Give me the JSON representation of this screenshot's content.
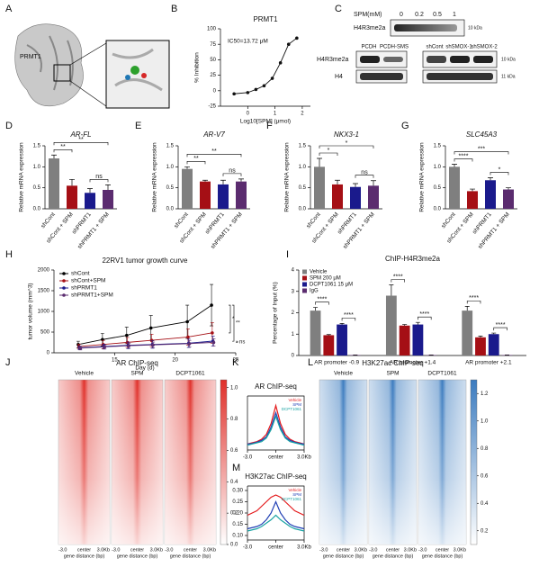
{
  "figure": {
    "A": {
      "panel": "A",
      "label": "PRMT1"
    },
    "C": {
      "panel": "C",
      "dose_label": "SPM(mM)",
      "doses": [
        "0",
        "0.2",
        "0.5",
        "1"
      ],
      "band1": "H4R3me2a",
      "kda1": "10 kDa",
      "left_lanes": [
        "PCDH",
        "PCDH-SMS"
      ],
      "right_lanes": [
        "shCont",
        "shSMOX-1",
        "shSMOX-2"
      ],
      "band2": "H4R3me2a",
      "band3": "H4",
      "kda2": "10 kDa",
      "kda3": "11 kDa"
    }
  },
  "chart_data": [
    {
      "panel": "B",
      "type": "line",
      "title": "PRMT1",
      "annotation": "IC50=13.72 μM",
      "xlabel": "Log10[SPM] (μmol)",
      "ylabel": "% Inhibition",
      "x": [
        -0.5,
        0,
        0.3,
        0.6,
        0.9,
        1.2,
        1.5,
        1.8
      ],
      "values": [
        -5,
        -3,
        2,
        8,
        20,
        45,
        75,
        85
      ],
      "color": "#111111",
      "xlim": [
        -1,
        2.3
      ],
      "xticks": [
        0,
        1,
        2
      ],
      "ylim": [
        -25,
        100
      ],
      "yticks": [
        -25,
        0,
        25,
        50,
        75,
        100
      ]
    },
    {
      "panel": "D",
      "type": "bar",
      "title": "AR-FL",
      "ylabel": "Relative mRNA expression",
      "categories": [
        "shCont",
        "shCont + SPM",
        "shPRMT1",
        "shPRMT1 + SPM"
      ],
      "values": [
        1.2,
        0.55,
        0.38,
        0.45
      ],
      "errors": [
        0.08,
        0.15,
        0.1,
        0.12
      ],
      "colors": [
        "#7f7f7f",
        "#a50f15",
        "#1a1a8c",
        "#5b2c6f"
      ],
      "ylim": [
        0,
        1.5
      ],
      "yticks": [
        {
          "value": 0,
          "label": "0.0"
        },
        0.5,
        {
          "value": 1,
          "label": "1.0"
        },
        1.5
      ],
      "annotations": [
        "**",
        "**",
        "ns"
      ]
    },
    {
      "panel": "E",
      "type": "bar",
      "title": "AR-V7",
      "ylabel": "Relative mRNA expression",
      "categories": [
        "shCont",
        "shCont + SPM",
        "shPRMT1",
        "shPRMT1 + SPM"
      ],
      "values": [
        0.95,
        0.65,
        0.58,
        0.65
      ],
      "errors": [
        0.05,
        0.03,
        0.1,
        0.06
      ],
      "colors": [
        "#7f7f7f",
        "#a50f15",
        "#1a1a8c",
        "#5b2c6f"
      ],
      "ylim": [
        0,
        1.5
      ],
      "yticks": [
        {
          "value": 0,
          "label": "0.0"
        },
        0.5,
        {
          "value": 1,
          "label": "1.0"
        },
        1.5
      ],
      "annotations": [
        "**",
        "**",
        "ns"
      ]
    },
    {
      "panel": "F",
      "type": "bar",
      "title": "NKX3-1",
      "ylabel": "Relative mRNA expression",
      "categories": [
        "shCont",
        "shCont + SPM",
        "shPRMT1",
        "shPRMT1 + SPM"
      ],
      "values": [
        1.0,
        0.58,
        0.52,
        0.55
      ],
      "errors": [
        0.2,
        0.1,
        0.08,
        0.12
      ],
      "colors": [
        "#7f7f7f",
        "#a50f15",
        "#1a1a8c",
        "#5b2c6f"
      ],
      "ylim": [
        0,
        1.5
      ],
      "yticks": [
        {
          "value": 0,
          "label": "0.0"
        },
        0.5,
        {
          "value": 1,
          "label": "1.0"
        },
        1.5
      ],
      "annotations": [
        "*",
        "*",
        "ns"
      ]
    },
    {
      "panel": "G",
      "type": "bar",
      "title": "SLC45A3",
      "ylabel": "Relative mRNA expression",
      "categories": [
        "shCont",
        "shCont + SPM",
        "shPRMT1",
        "shPRMT1 + SPM"
      ],
      "values": [
        1.0,
        0.42,
        0.68,
        0.46
      ],
      "errors": [
        0.06,
        0.05,
        0.06,
        0.04
      ],
      "colors": [
        "#7f7f7f",
        "#a50f15",
        "#1a1a8c",
        "#5b2c6f"
      ],
      "ylim": [
        0,
        1.5
      ],
      "yticks": [
        {
          "value": 0,
          "label": "0.0"
        },
        0.5,
        {
          "value": 1,
          "label": "1.0"
        },
        1.5
      ],
      "annotations": [
        "****",
        "***",
        "*"
      ]
    },
    {
      "panel": "H",
      "type": "line",
      "title": "22RV1 tumor growth curve",
      "xlabel": "Day (d)",
      "ylabel": "tumor volume (mm^3)",
      "legend": "upper-left",
      "x": [
        12,
        14,
        16,
        18,
        21,
        23
      ],
      "series": [
        {
          "name": "shCont",
          "color": "#000000",
          "values": [
            200,
            320,
            420,
            600,
            750,
            1150
          ],
          "errors": [
            80,
            150,
            200,
            300,
            400,
            500
          ]
        },
        {
          "name": "shCont+SPM",
          "color": "#a50f15",
          "values": [
            150,
            200,
            250,
            300,
            380,
            480
          ],
          "errors": [
            60,
            100,
            120,
            150,
            200,
            250
          ]
        },
        {
          "name": "shPRMT1",
          "color": "#1a1a8c",
          "values": [
            120,
            150,
            180,
            200,
            230,
            280
          ],
          "errors": [
            40,
            60,
            80,
            90,
            100,
            120
          ]
        },
        {
          "name": "shPRMT1+SPM",
          "color": "#5b2c6f",
          "values": [
            110,
            140,
            170,
            190,
            220,
            250
          ],
          "errors": [
            40,
            50,
            60,
            70,
            80,
            90
          ]
        }
      ],
      "xlim": [
        10,
        25
      ],
      "xticks": [
        15,
        20,
        25
      ],
      "ylim": [
        0,
        2000
      ],
      "yticks": [
        0,
        500,
        1000,
        1500,
        2000
      ],
      "annotations": [
        "*",
        "**",
        "ns"
      ]
    },
    {
      "panel": "I",
      "type": "grouped-bar",
      "title": "ChIP-H4R3me2a",
      "ylabel": "Percentage of Input (%)",
      "legend": "upper-left",
      "categories": [
        "AR promoter -0.9",
        "AR promoter +1.4",
        "AR promoter +2.1"
      ],
      "series": [
        {
          "name": "Vehicle",
          "color": "#7f7f7f",
          "values": [
            2.1,
            2.8,
            2.1
          ],
          "errors": [
            0.15,
            0.5,
            0.2
          ]
        },
        {
          "name": "SPM 200 μM",
          "color": "#a50f15",
          "values": [
            0.95,
            1.4,
            0.85
          ],
          "errors": [
            0.03,
            0.05,
            0.06
          ]
        },
        {
          "name": "DCPT1061 15 μM",
          "color": "#1a1a8c",
          "values": [
            1.45,
            1.45,
            1.0
          ],
          "errors": [
            0.05,
            0.1,
            0.05
          ]
        },
        {
          "name": "IgG",
          "color": "#5b2c6f",
          "values": [
            0.02,
            0.02,
            0.02
          ],
          "errors": [
            0.01,
            0.01,
            0.01
          ]
        }
      ],
      "ylim": [
        0,
        4
      ],
      "yticks": [
        0,
        1,
        2,
        3,
        4
      ],
      "annotations": [
        "****",
        "****",
        "****",
        "****",
        "****",
        "****"
      ]
    },
    {
      "panel": "J",
      "type": "heatmap",
      "title": "AR ChIP-seq",
      "columns": [
        "Vehicle",
        "SPM",
        "DCPT1061"
      ],
      "color": "#e0302a",
      "xtick_labels": [
        "-3.0",
        "center",
        "3.0Kb"
      ],
      "xlabel": "gene distance (bp)",
      "clim": [
        0,
        1.05
      ],
      "cticks": [
        {
          "value": 0,
          "label": "0.0"
        },
        0.2,
        0.4,
        0.6,
        0.8,
        {
          "value": 1,
          "label": "1.0"
        }
      ]
    },
    {
      "panel": "K",
      "type": "line",
      "title": "AR ChIP-seq",
      "legend": "upper-right",
      "x": [
        -3,
        -2.5,
        -2,
        -1.5,
        -1,
        -0.5,
        0,
        0.5,
        1,
        1.5,
        2,
        2.5,
        3
      ],
      "series": [
        {
          "name": "Vehicle",
          "color": "#e41a1c",
          "values": [
            0.1,
            0.11,
            0.12,
            0.14,
            0.18,
            0.27,
            0.42,
            0.27,
            0.18,
            0.14,
            0.12,
            0.11,
            0.1
          ]
        },
        {
          "name": "SPM",
          "color": "#1f3fb4",
          "values": [
            0.1,
            0.105,
            0.115,
            0.13,
            0.16,
            0.24,
            0.36,
            0.24,
            0.16,
            0.13,
            0.115,
            0.105,
            0.1
          ]
        },
        {
          "name": "DCPT1061",
          "color": "#1aa3a3",
          "values": [
            0.09,
            0.1,
            0.11,
            0.12,
            0.15,
            0.22,
            0.33,
            0.22,
            0.15,
            0.12,
            0.11,
            0.1,
            0.09
          ]
        }
      ],
      "xlim": [
        -3,
        3
      ],
      "xticks": [
        {
          "value": -3,
          "label": "-3.0"
        },
        {
          "value": 0,
          "label": "center"
        },
        {
          "value": 3,
          "label": "3.0Kb"
        }
      ],
      "ylim": [
        0.05,
        0.5
      ]
    },
    {
      "panel": "M",
      "type": "line",
      "title": "H3K27ac ChIP-seq",
      "legend": "upper-right",
      "x": [
        -3,
        -2.5,
        -2,
        -1.5,
        -1,
        -0.5,
        0,
        0.5,
        1,
        1.5,
        2,
        2.5,
        3
      ],
      "series": [
        {
          "name": "Vehicle",
          "color": "#e41a1c",
          "values": [
            0.19,
            0.2,
            0.21,
            0.23,
            0.25,
            0.27,
            0.28,
            0.27,
            0.25,
            0.23,
            0.21,
            0.2,
            0.19
          ]
        },
        {
          "name": "SPM",
          "color": "#1f3fb4",
          "values": [
            0.13,
            0.135,
            0.14,
            0.15,
            0.17,
            0.2,
            0.25,
            0.2,
            0.17,
            0.15,
            0.14,
            0.135,
            0.13
          ]
        },
        {
          "name": "DCPT1061",
          "color": "#1aa3a3",
          "values": [
            0.12,
            0.125,
            0.13,
            0.14,
            0.155,
            0.17,
            0.19,
            0.17,
            0.155,
            0.14,
            0.13,
            0.125,
            0.12
          ]
        }
      ],
      "xlim": [
        -3,
        3
      ],
      "xticks": [
        {
          "value": -3,
          "label": "-3.0"
        },
        {
          "value": 0,
          "label": "center"
        },
        {
          "value": 3,
          "label": "3.0Kb"
        }
      ],
      "ylim": [
        0.08,
        0.32
      ],
      "yticks": [
        {
          "value": 0.1,
          "label": "0.10"
        },
        0.15,
        {
          "value": 0.2,
          "label": "0.20"
        },
        0.25,
        {
          "value": 0.3,
          "label": "0.30"
        }
      ]
    },
    {
      "panel": "L",
      "type": "heatmap",
      "title": "H3K27ac ChIP-seq",
      "columns": [
        "Vehicle",
        "SPM",
        "DCPT1061"
      ],
      "color": "#3b7bbf",
      "xtick_labels": [
        "-3.0",
        "center",
        "3.0Kb"
      ],
      "xlabel": "gene distance (bp)",
      "clim": [
        0.1,
        1.3
      ],
      "cticks": [
        0.2,
        0.4,
        0.6,
        0.8,
        {
          "value": 1,
          "label": "1.0"
        },
        1.2
      ]
    }
  ]
}
